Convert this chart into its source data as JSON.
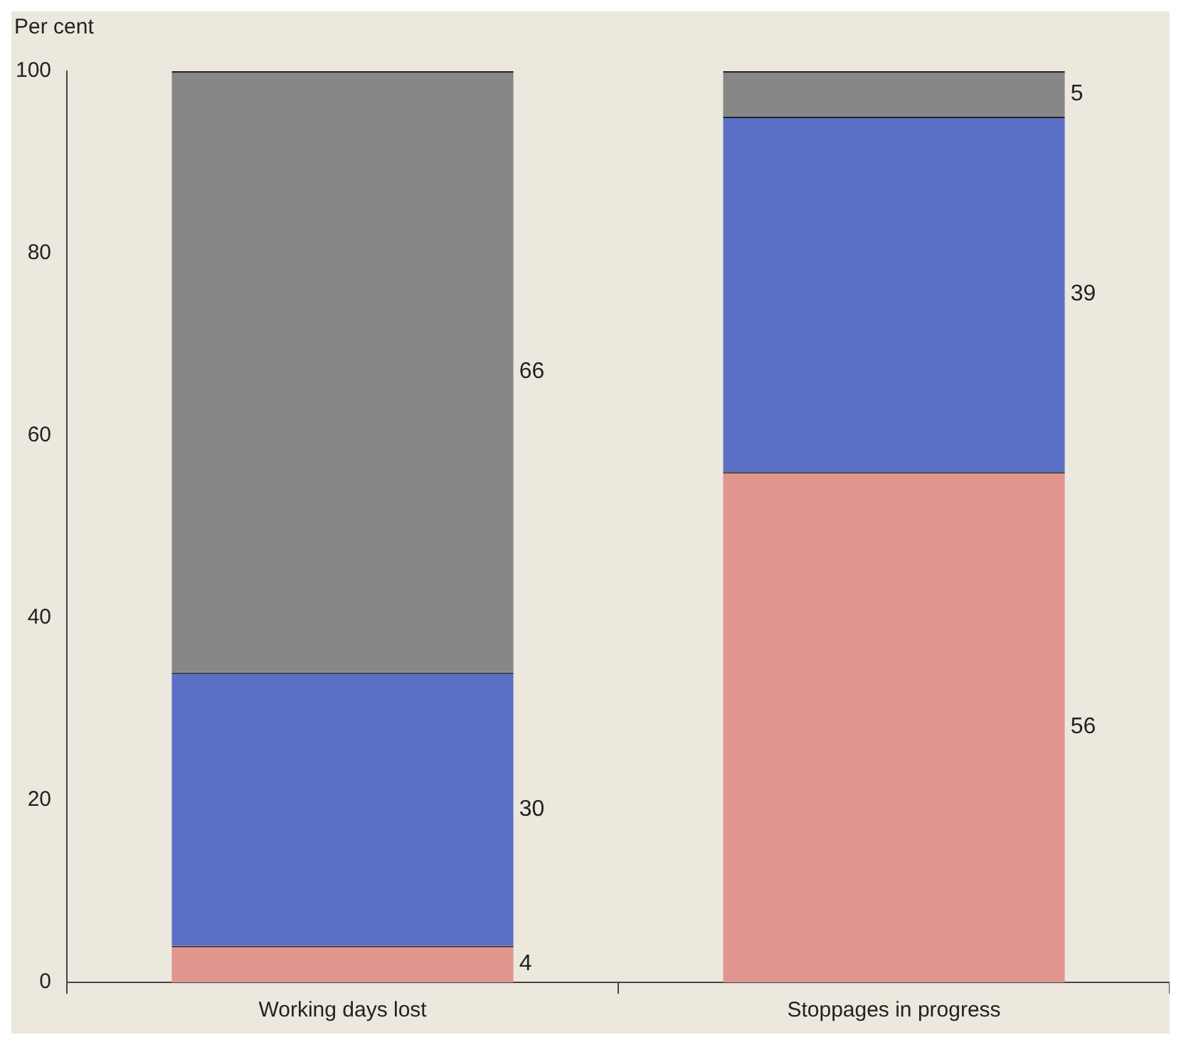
{
  "chart_data": {
    "type": "bar",
    "stacked": true,
    "ylabel": "Per cent",
    "categories": [
      "Working days lost",
      "Stoppages in progress"
    ],
    "series": [
      {
        "color": "#e0958e",
        "values": [
          4,
          56
        ]
      },
      {
        "color": "#5b6fc6",
        "values": [
          30,
          39
        ]
      },
      {
        "color": "#878787",
        "values": [
          66,
          5
        ]
      }
    ],
    "ylim": [
      0,
      100
    ],
    "yticks": [
      0,
      20,
      40,
      60,
      80,
      100
    ],
    "grid": false,
    "legend": false,
    "data_labels": true
  }
}
